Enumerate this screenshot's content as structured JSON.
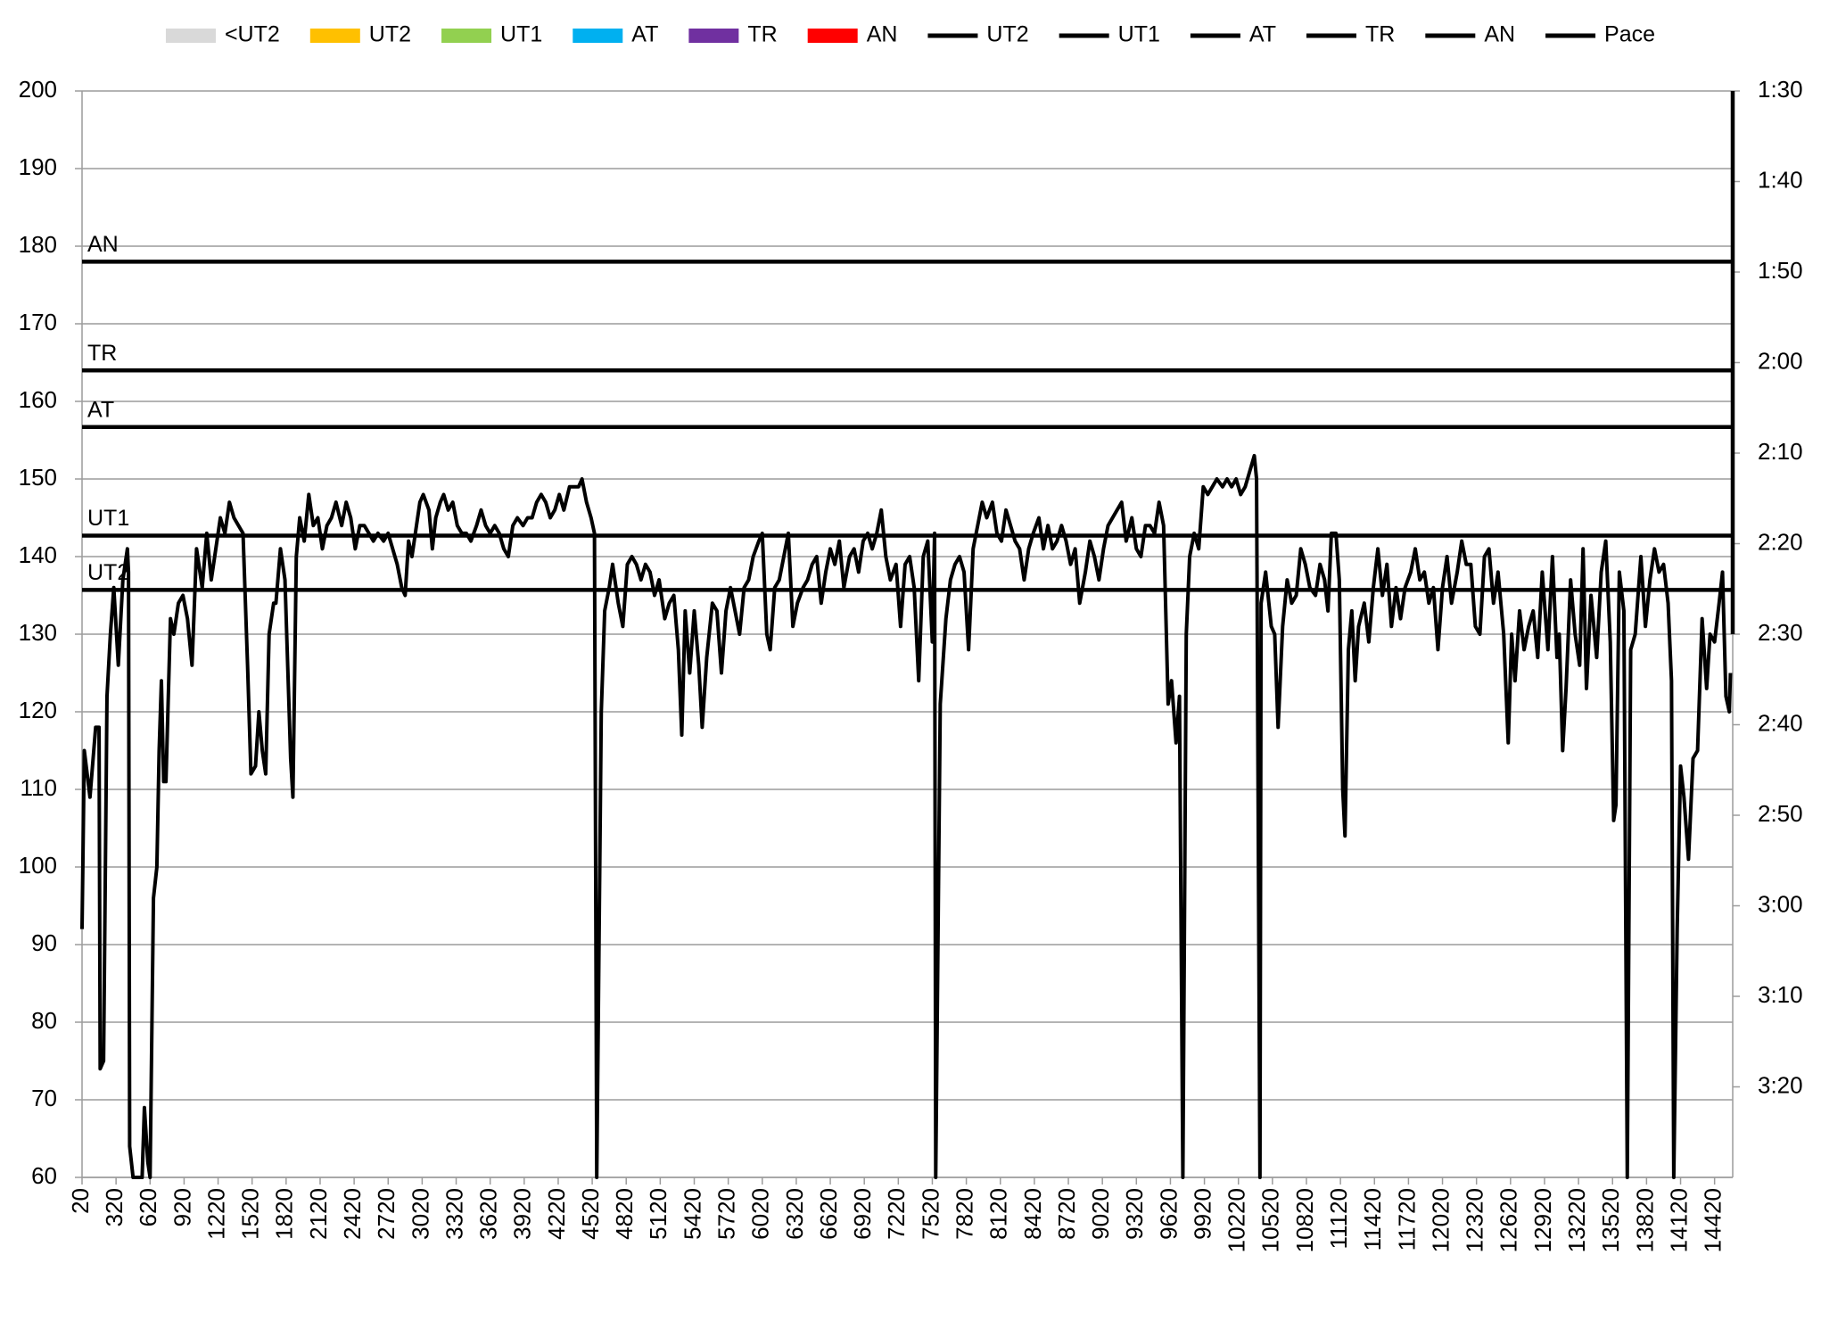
{
  "chart_data": {
    "type": "line",
    "xlim": [
      20,
      14580
    ],
    "xticks": [
      20,
      320,
      620,
      920,
      1220,
      1520,
      1820,
      2120,
      2420,
      2720,
      3020,
      3320,
      3620,
      3920,
      4220,
      4520,
      4820,
      5120,
      5420,
      5720,
      6020,
      6320,
      6620,
      6920,
      7220,
      7520,
      7820,
      8120,
      8420,
      8720,
      9020,
      9320,
      9620,
      9920,
      10220,
      10520,
      10820,
      11120,
      11420,
      11720,
      12020,
      12320,
      12620,
      12920,
      13220,
      13520,
      13820,
      14120,
      14420
    ],
    "ylim": [
      60,
      200
    ],
    "yticks": [
      60,
      70,
      80,
      90,
      100,
      110,
      120,
      130,
      140,
      150,
      160,
      170,
      180,
      190,
      200
    ],
    "y2lim": [
      210,
      90
    ],
    "y2ticks": [
      {
        "value": 90,
        "label": "1:30"
      },
      {
        "value": 100,
        "label": "1:40"
      },
      {
        "value": 110,
        "label": "1:50"
      },
      {
        "value": 120,
        "label": "2:00"
      },
      {
        "value": 130,
        "label": "2:10"
      },
      {
        "value": 140,
        "label": "2:20"
      },
      {
        "value": 150,
        "label": "2:30"
      },
      {
        "value": 160,
        "label": "2:40"
      },
      {
        "value": 170,
        "label": "2:50"
      },
      {
        "value": 180,
        "label": "3:00"
      },
      {
        "value": 190,
        "label": "3:10"
      },
      {
        "value": 200,
        "label": "3:20"
      }
    ],
    "grid": true,
    "legend": "top",
    "zones": [
      {
        "name": "<UT2",
        "color": "#d9d9d9"
      },
      {
        "name": "UT2",
        "color": "#ffc000"
      },
      {
        "name": "UT1",
        "color": "#92d050"
      },
      {
        "name": "AT",
        "color": "#00b0f0"
      },
      {
        "name": "TR",
        "color": "#7030a0"
      },
      {
        "name": "AN",
        "color": "#ff0000"
      }
    ],
    "series": [
      {
        "name": "UT2",
        "color": "#000000",
        "level_label": true,
        "x": [
          20,
          14580
        ],
        "values": [
          135.7,
          135.7
        ]
      },
      {
        "name": "UT1",
        "color": "#000000",
        "level_label": true,
        "x": [
          20,
          14580
        ],
        "values": [
          142.7,
          142.7
        ]
      },
      {
        "name": "AT",
        "color": "#000000",
        "level_label": true,
        "x": [
          20,
          14580
        ],
        "values": [
          156.7,
          156.7
        ]
      },
      {
        "name": "TR",
        "color": "#000000",
        "level_label": true,
        "x": [
          20,
          14580
        ],
        "values": [
          164,
          164
        ]
      },
      {
        "name": "AN",
        "color": "#000000",
        "level_label": true,
        "x": [
          20,
          14580
        ],
        "values": [
          178,
          178
        ]
      },
      {
        "name": "Pace",
        "color": "#000000",
        "axis": "y2",
        "x": [
          14580,
          14580
        ],
        "values": [
          90,
          150
        ]
      },
      {
        "color": "#000000",
        "x": [
          20,
          40,
          90,
          140,
          170,
          180,
          210,
          240,
          270,
          300,
          340,
          380,
          420,
          430,
          440,
          470,
          550,
          570,
          600,
          620,
          650,
          680,
          700,
          720,
          740,
          760,
          800,
          830,
          870,
          910,
          950,
          990,
          1030,
          1080,
          1120,
          1160,
          1200,
          1240,
          1280,
          1320,
          1360,
          1400,
          1440,
          1480,
          1510,
          1550,
          1580,
          1610,
          1640,
          1670,
          1710,
          1730,
          1770,
          1810,
          1860,
          1880,
          1910,
          1940,
          1980,
          2020,
          2060,
          2100,
          2140,
          2180,
          2220,
          2260,
          2310,
          2350,
          2390,
          2430,
          2470,
          2510,
          2550,
          2590,
          2630,
          2680,
          2720,
          2760,
          2800,
          2840,
          2870,
          2900,
          2930,
          2970,
          3000,
          3030,
          3080,
          3110,
          3140,
          3180,
          3210,
          3250,
          3290,
          3330,
          3370,
          3410,
          3450,
          3500,
          3540,
          3580,
          3620,
          3660,
          3700,
          3740,
          3780,
          3820,
          3860,
          3910,
          3950,
          3990,
          4030,
          4070,
          4110,
          4150,
          4190,
          4230,
          4270,
          4320,
          4360,
          4400,
          4430,
          4470,
          4510,
          4540,
          4560,
          4600,
          4630,
          4670,
          4700,
          4750,
          4790,
          4830,
          4870,
          4910,
          4950,
          4990,
          5030,
          5070,
          5110,
          5160,
          5200,
          5240,
          5280,
          5310,
          5340,
          5380,
          5420,
          5460,
          5490,
          5530,
          5580,
          5620,
          5660,
          5700,
          5740,
          5780,
          5820,
          5860,
          5900,
          5940,
          5990,
          6020,
          6060,
          6090,
          6130,
          6170,
          6210,
          6250,
          6290,
          6330,
          6380,
          6420,
          6460,
          6500,
          6540,
          6580,
          6620,
          6660,
          6700,
          6740,
          6790,
          6830,
          6870,
          6910,
          6950,
          6990,
          7030,
          7070,
          7110,
          7150,
          7200,
          7240,
          7280,
          7320,
          7360,
          7400,
          7440,
          7480,
          7520,
          7540,
          7550,
          7590,
          7640,
          7680,
          7720,
          7760,
          7800,
          7840,
          7880,
          7920,
          7960,
          8000,
          8050,
          8090,
          8130,
          8170,
          8210,
          8250,
          8290,
          8330,
          8370,
          8410,
          8460,
          8500,
          8540,
          8580,
          8620,
          8660,
          8700,
          8740,
          8780,
          8820,
          8870,
          8910,
          8950,
          8990,
          9030,
          9070,
          9110,
          9150,
          9190,
          9230,
          9280,
          9320,
          9360,
          9400,
          9440,
          9480,
          9520,
          9560,
          9600,
          9630,
          9670,
          9700,
          9730,
          9760,
          9790,
          9830,
          9870,
          9910,
          9950,
          9990,
          10030,
          10080,
          10120,
          10160,
          10200,
          10240,
          10280,
          10320,
          10360,
          10380,
          10410,
          10420,
          10460,
          10510,
          10540,
          10570,
          10610,
          10650,
          10690,
          10730,
          10770,
          10810,
          10850,
          10900,
          10940,
          10980,
          11010,
          11040,
          11080,
          11110,
          11140,
          11160,
          11190,
          11220,
          11250,
          11280,
          11330,
          11370,
          11410,
          11450,
          11490,
          11530,
          11570,
          11610,
          11650,
          11690,
          11740,
          11780,
          11820,
          11860,
          11900,
          11940,
          11980,
          12020,
          12060,
          12100,
          12150,
          12190,
          12230,
          12270,
          12310,
          12350,
          12390,
          12430,
          12470,
          12510,
          12560,
          12600,
          12630,
          12660,
          12700,
          12740,
          12780,
          12820,
          12860,
          12900,
          12950,
          12990,
          13030,
          13050,
          13080,
          13110,
          13150,
          13190,
          13230,
          13260,
          13290,
          13330,
          13380,
          13420,
          13460,
          13500,
          13530,
          13550,
          13580,
          13620,
          13650,
          13680,
          13720,
          13770,
          13810,
          13850,
          13890,
          13930,
          13970,
          14010,
          14040,
          14060,
          14090,
          14120,
          14150,
          14190,
          14230,
          14270,
          14310,
          14350,
          14380,
          14420,
          14460,
          14490,
          14520,
          14550,
          14560
        ],
        "values": [
          92,
          115,
          109,
          118,
          118,
          74,
          75,
          122,
          130,
          136,
          126,
          137,
          141,
          138,
          64,
          60,
          60,
          69,
          62,
          60,
          96,
          100,
          115,
          124,
          111,
          111,
          132,
          130,
          134,
          135,
          132,
          126,
          141,
          136,
          143,
          137,
          141,
          145,
          143,
          147,
          145,
          144,
          143,
          126,
          112,
          113,
          120,
          115,
          112,
          130,
          134,
          134,
          141,
          137,
          114,
          109,
          140,
          145,
          142,
          148,
          144,
          145,
          141,
          144,
          145,
          147,
          144,
          147,
          145,
          141,
          144,
          144,
          143,
          142,
          143,
          142,
          143,
          141,
          139,
          136,
          135,
          142,
          140,
          144,
          147,
          148,
          146,
          141,
          145,
          147,
          148,
          146,
          147,
          144,
          143,
          143,
          142,
          144,
          146,
          144,
          143,
          144,
          143,
          141,
          140,
          144,
          145,
          144,
          145,
          145,
          147,
          148,
          147,
          145,
          146,
          148,
          146,
          149,
          149,
          149,
          150,
          147,
          145,
          143,
          60,
          120,
          133,
          136,
          139,
          134,
          131,
          139,
          140,
          139,
          137,
          139,
          138,
          135,
          137,
          132,
          134,
          135,
          128,
          117,
          133,
          125,
          133,
          126,
          118,
          127,
          134,
          133,
          125,
          133,
          136,
          133,
          130,
          136,
          137,
          140,
          142,
          143,
          130,
          128,
          136,
          137,
          140,
          143,
          131,
          134,
          136,
          137,
          139,
          140,
          134,
          138,
          141,
          139,
          142,
          136,
          140,
          141,
          138,
          142,
          143,
          141,
          143,
          146,
          140,
          137,
          139,
          131,
          139,
          140,
          136,
          124,
          140,
          142,
          129,
          143,
          60,
          121,
          132,
          137,
          139,
          140,
          138,
          128,
          141,
          144,
          147,
          145,
          147,
          143,
          142,
          146,
          144,
          142,
          141,
          137,
          141,
          143,
          145,
          141,
          144,
          141,
          142,
          144,
          142,
          139,
          141,
          134,
          138,
          142,
          140,
          137,
          141,
          144,
          145,
          146,
          147,
          142,
          145,
          141,
          140,
          144,
          144,
          143,
          147,
          144,
          121,
          124,
          116,
          122,
          60,
          130,
          140,
          143,
          141,
          149,
          148,
          149,
          150,
          149,
          150,
          149,
          150,
          148,
          149,
          151,
          153,
          150,
          60,
          134,
          138,
          131,
          130,
          118,
          131,
          137,
          134,
          135,
          141,
          139,
          136,
          135,
          139,
          137,
          133,
          143,
          143,
          137,
          110,
          104,
          128,
          133,
          124,
          131,
          134,
          129,
          136,
          141,
          135,
          139,
          131,
          136,
          132,
          136,
          138,
          141,
          137,
          138,
          134,
          136,
          128,
          136,
          140,
          134,
          138,
          142,
          139,
          139,
          131,
          130,
          140,
          141,
          134,
          138,
          130,
          116,
          130,
          124,
          133,
          128,
          131,
          133,
          127,
          138,
          128,
          140,
          127,
          130,
          115,
          123,
          137,
          130,
          126,
          141,
          123,
          135,
          127,
          138,
          142,
          129,
          106,
          108,
          138,
          133,
          60,
          128,
          130,
          140,
          131,
          137,
          141,
          138,
          139,
          134,
          124,
          60,
          92,
          113,
          109,
          101,
          114,
          115,
          132,
          123,
          130,
          129,
          134,
          138,
          122,
          120,
          125
        ]
      }
    ]
  }
}
